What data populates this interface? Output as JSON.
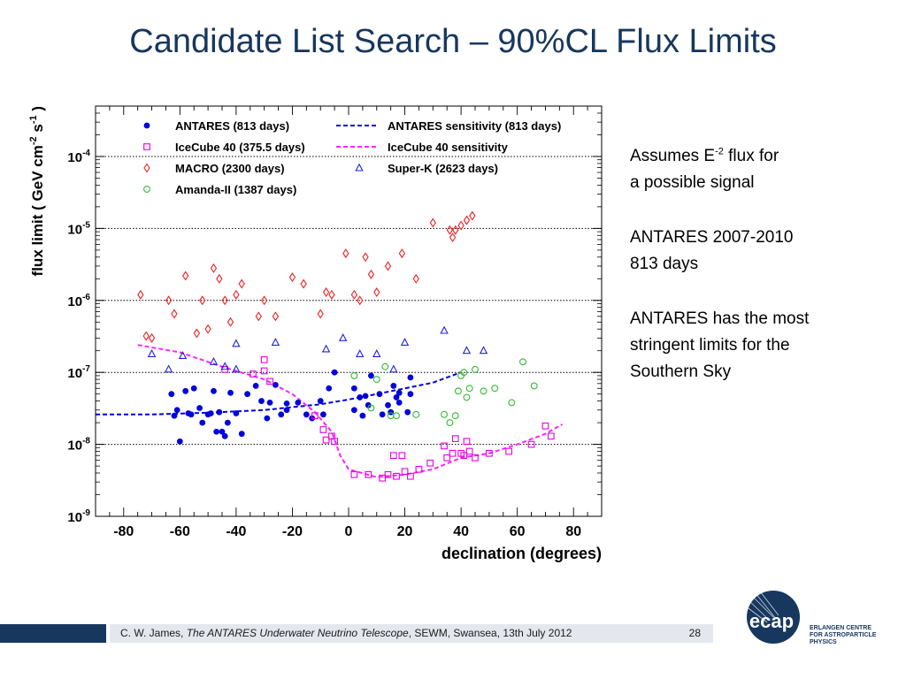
{
  "slide": {
    "title": "Candidate List Search – 90%CL Flux Limits",
    "text": {
      "assumes_pre": "Assumes E",
      "assumes_sup": "-2",
      "assumes_post": " flux for",
      "assumes_line2": "a possible signal",
      "period": "ANTARES 2007-2010",
      "days": "813 days",
      "limits_line1": "ANTARES has the most",
      "limits_line2": "stringent limits for the",
      "limits_line3": "Southern Sky"
    },
    "footer": {
      "author": "C. W. James, ",
      "talk_title": "The ANTARES Underwater Neutrino Telescope",
      "venue": ", SEWM, Swansea, 13th July 2012",
      "page": "28"
    },
    "logo": {
      "mark": "ecap",
      "lines": [
        "ERLANGEN CENTRE",
        "FOR ASTROPARTICLE",
        "PHYSICS"
      ],
      "color": "#17375e"
    }
  },
  "chart_data": {
    "type": "scatter",
    "xlabel": "declination (degrees)",
    "ylabel_parts": [
      "flux limit ( GeV cm",
      "-2",
      " s",
      "-1",
      " )"
    ],
    "xlim": [
      -90,
      90
    ],
    "ylim_log10": [
      -9,
      -3.3
    ],
    "x_ticks": [
      -80,
      -60,
      -40,
      -20,
      0,
      20,
      40,
      60,
      80
    ],
    "y_ticks": [
      {
        "exp": -9,
        "label": "-9"
      },
      {
        "exp": -8,
        "label": "-8"
      },
      {
        "exp": -7,
        "label": "-7"
      },
      {
        "exp": -6,
        "label": "-6"
      },
      {
        "exp": -5,
        "label": "-5"
      },
      {
        "exp": -4,
        "label": "-4"
      }
    ],
    "y_tick_base": "10",
    "grid": "dotted horizontal lines at each decade",
    "legend": [
      {
        "label": "ANTARES (813 days)",
        "marker": "circle-filled",
        "color": "#0000dd"
      },
      {
        "label": "ANTARES sensitivity (813 days)",
        "marker": "line-dashed",
        "color": "#0000dd"
      },
      {
        "label": "IceCube 40 (375.5 days)",
        "marker": "square-open",
        "color": "#e600e6"
      },
      {
        "label": "IceCube 40 sensitivity",
        "marker": "line-dashed",
        "color": "#ff22ff"
      },
      {
        "label": "MACRO (2300 days)",
        "marker": "diamond-open",
        "color": "#ee2222"
      },
      {
        "label": "Super-K (2623 days)",
        "marker": "triangle-open",
        "color": "#2222dd"
      },
      {
        "label": "Amanda-II (1387 days)",
        "marker": "circle-open",
        "color": "#33bb33"
      }
    ],
    "series": [
      {
        "name": "ANTARES (813 days)",
        "marker": "circle-filled",
        "color": "#0000dd",
        "points": [
          [
            -63,
            5e-08
          ],
          [
            -61,
            3e-08
          ],
          [
            -62,
            2.5e-08
          ],
          [
            -60,
            1.1e-08
          ],
          [
            -58,
            5.5e-08
          ],
          [
            -57,
            2.7e-08
          ],
          [
            -56,
            2.6e-08
          ],
          [
            -55,
            6e-08
          ],
          [
            -53,
            3.2e-08
          ],
          [
            -52,
            2e-08
          ],
          [
            -50,
            2.6e-08
          ],
          [
            -49,
            2.7e-08
          ],
          [
            -48,
            5.5e-08
          ],
          [
            -47,
            1.5e-08
          ],
          [
            -46,
            2.8e-08
          ],
          [
            -45,
            1.5e-08
          ],
          [
            -44,
            1.3e-08
          ],
          [
            -43,
            2e-08
          ],
          [
            -42,
            5.2e-08
          ],
          [
            -40,
            2.7e-08
          ],
          [
            -38,
            1.4e-08
          ],
          [
            -36,
            5e-08
          ],
          [
            -33,
            6.5e-08
          ],
          [
            -31,
            4e-08
          ],
          [
            -29,
            2.3e-08
          ],
          [
            -28,
            3.8e-08
          ],
          [
            -26,
            6.7e-08
          ],
          [
            -24,
            2.6e-08
          ],
          [
            -22,
            3e-08
          ],
          [
            -22,
            3.7e-08
          ],
          [
            -18,
            3.8e-08
          ],
          [
            -15,
            2.6e-08
          ],
          [
            -13,
            2.3e-08
          ],
          [
            -10,
            4e-08
          ],
          [
            -9,
            2.6e-08
          ],
          [
            -7,
            6e-08
          ],
          [
            -5,
            1e-07
          ],
          [
            2,
            6e-08
          ],
          [
            2,
            3e-08
          ],
          [
            4,
            4.5e-08
          ],
          [
            5,
            2.5e-08
          ],
          [
            6,
            4.7e-08
          ],
          [
            7,
            3.5e-08
          ],
          [
            8,
            9e-08
          ],
          [
            11,
            5e-08
          ],
          [
            12,
            2.6e-08
          ],
          [
            14,
            3.5e-08
          ],
          [
            15,
            2.8e-08
          ],
          [
            16,
            6.5e-08
          ],
          [
            17,
            4.5e-08
          ],
          [
            18,
            3.8e-08
          ],
          [
            18,
            5.2e-08
          ],
          [
            21,
            2.8e-08
          ],
          [
            22,
            5e-08
          ],
          [
            22,
            8.5e-08
          ]
        ]
      },
      {
        "name": "IceCube 40 (375.5 days)",
        "marker": "square-open",
        "color": "#e600e6",
        "points": [
          [
            -44,
            1.1e-07
          ],
          [
            -34,
            9.5e-08
          ],
          [
            -30,
            1.5e-07
          ],
          [
            -30,
            1.05e-07
          ],
          [
            -28,
            7.5e-08
          ],
          [
            -12,
            2.5e-08
          ],
          [
            -9,
            1.6e-08
          ],
          [
            -6,
            1.3e-08
          ],
          [
            -5,
            1.1e-08
          ],
          [
            -8,
            1.15e-08
          ],
          [
            2,
            3.8e-09
          ],
          [
            7,
            3.8e-09
          ],
          [
            12,
            3.4e-09
          ],
          [
            14,
            3.8e-09
          ],
          [
            17,
            3.6e-09
          ],
          [
            20,
            4.2e-09
          ],
          [
            22,
            3.6e-09
          ],
          [
            16,
            7e-09
          ],
          [
            19,
            7e-09
          ],
          [
            25,
            4.5e-09
          ],
          [
            29,
            5.5e-09
          ],
          [
            34,
            9.5e-09
          ],
          [
            35,
            6.5e-09
          ],
          [
            38,
            1.2e-08
          ],
          [
            37,
            7.5e-09
          ],
          [
            40,
            7.5e-09
          ],
          [
            41,
            7e-09
          ],
          [
            42,
            1.1e-08
          ],
          [
            43,
            8e-09
          ],
          [
            45,
            6.5e-09
          ],
          [
            50,
            7.5e-09
          ],
          [
            57,
            8e-09
          ],
          [
            65,
            1e-08
          ],
          [
            70,
            1.8e-08
          ],
          [
            72,
            1.3e-08
          ]
        ]
      },
      {
        "name": "MACRO (2300 days)",
        "marker": "diamond-open",
        "color": "#ee2222",
        "points": [
          [
            -74,
            1.2e-06
          ],
          [
            -72,
            3.2e-07
          ],
          [
            -70,
            3e-07
          ],
          [
            -64,
            1e-06
          ],
          [
            -62,
            6.5e-07
          ],
          [
            -58,
            2.2e-06
          ],
          [
            -54,
            3.5e-07
          ],
          [
            -52,
            1e-06
          ],
          [
            -50,
            4e-07
          ],
          [
            -48,
            2.8e-06
          ],
          [
            -46,
            2e-06
          ],
          [
            -44,
            1e-06
          ],
          [
            -42,
            5e-07
          ],
          [
            -40,
            1.2e-06
          ],
          [
            -38,
            1.7e-06
          ],
          [
            -32,
            6e-07
          ],
          [
            -30,
            1e-06
          ],
          [
            -26,
            6e-07
          ],
          [
            -20,
            2.1e-06
          ],
          [
            -16,
            1.7e-06
          ],
          [
            -10,
            6.5e-07
          ],
          [
            -8,
            1.3e-06
          ],
          [
            -6,
            1.2e-06
          ],
          [
            2,
            1.2e-06
          ],
          [
            4,
            1e-06
          ],
          [
            -1,
            4.5e-06
          ],
          [
            6,
            4e-06
          ],
          [
            8,
            2.3e-06
          ],
          [
            10,
            1.3e-06
          ],
          [
            14,
            3e-06
          ],
          [
            19,
            4.5e-06
          ],
          [
            24,
            2e-06
          ],
          [
            30,
            1.2e-05
          ],
          [
            36,
            9.5e-06
          ],
          [
            37,
            7.5e-06
          ],
          [
            38,
            9.5e-06
          ],
          [
            40,
            1.1e-05
          ],
          [
            42,
            1.3e-05
          ],
          [
            44,
            1.5e-05
          ]
        ]
      },
      {
        "name": "Super-K (2623 days)",
        "marker": "triangle-open",
        "color": "#2222dd",
        "points": [
          [
            -70,
            1.8e-07
          ],
          [
            -64,
            1.1e-07
          ],
          [
            -59,
            1.7e-07
          ],
          [
            -48,
            1.4e-07
          ],
          [
            -44,
            1.2e-07
          ],
          [
            -40,
            1.1e-07
          ],
          [
            -40,
            2.5e-07
          ],
          [
            -26,
            2.6e-07
          ],
          [
            -8,
            2.1e-07
          ],
          [
            -2,
            3e-07
          ],
          [
            4,
            1.8e-07
          ],
          [
            10,
            1.8e-07
          ],
          [
            16,
            1.1e-07
          ],
          [
            20,
            2.6e-07
          ],
          [
            34,
            3.8e-07
          ],
          [
            42,
            2e-07
          ],
          [
            48,
            2e-07
          ]
        ]
      },
      {
        "name": "Amanda-II (1387 days)",
        "marker": "circle-open",
        "color": "#33bb33",
        "points": [
          [
            2,
            9e-08
          ],
          [
            8,
            3.2e-08
          ],
          [
            10,
            8e-08
          ],
          [
            13,
            1.2e-07
          ],
          [
            15,
            2.5e-08
          ],
          [
            17,
            2.5e-08
          ],
          [
            24,
            2.6e-08
          ],
          [
            34,
            2.6e-08
          ],
          [
            36,
            2e-08
          ],
          [
            38,
            2.5e-08
          ],
          [
            39,
            5.5e-08
          ],
          [
            40,
            9e-08
          ],
          [
            41,
            1e-07
          ],
          [
            42,
            4.5e-08
          ],
          [
            43,
            6e-08
          ],
          [
            45,
            1.1e-07
          ],
          [
            48,
            5.5e-08
          ],
          [
            52,
            6e-08
          ],
          [
            58,
            3.8e-08
          ],
          [
            62,
            1.4e-07
          ],
          [
            66,
            6.5e-08
          ]
        ]
      }
    ],
    "curves": [
      {
        "name": "ANTARES sensitivity (813 days)",
        "style": "dashed",
        "color": "#0000dd",
        "points": [
          [
            -90,
            2.6e-08
          ],
          [
            -70,
            2.6e-08
          ],
          [
            -50,
            2.75e-08
          ],
          [
            -30,
            3e-08
          ],
          [
            -10,
            3.6e-08
          ],
          [
            0,
            4.2e-08
          ],
          [
            10,
            5e-08
          ],
          [
            20,
            6e-08
          ],
          [
            30,
            7.2e-08
          ],
          [
            35,
            8.5e-08
          ],
          [
            40,
            1e-07
          ]
        ]
      },
      {
        "name": "IceCube 40 sensitivity",
        "style": "dashed",
        "color": "#ff22ff",
        "points": [
          [
            -75,
            2.4e-07
          ],
          [
            -60,
            1.9e-07
          ],
          [
            -45,
            1.2e-07
          ],
          [
            -30,
            8e-08
          ],
          [
            -20,
            5e-08
          ],
          [
            -12,
            2.8e-08
          ],
          [
            -6,
            1.5e-08
          ],
          [
            -3,
            7e-09
          ],
          [
            0,
            4.5e-09
          ],
          [
            10,
            3.5e-09
          ],
          [
            20,
            3.8e-09
          ],
          [
            30,
            4.5e-09
          ],
          [
            40,
            6.5e-09
          ],
          [
            50,
            7.5e-09
          ],
          [
            60,
            1e-08
          ],
          [
            70,
            1.4e-08
          ],
          [
            76,
            1.9e-08
          ]
        ]
      }
    ]
  }
}
